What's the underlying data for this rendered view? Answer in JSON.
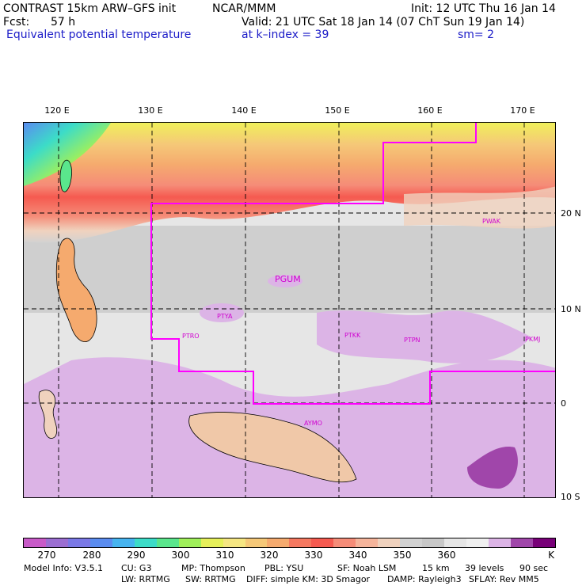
{
  "header": {
    "title": "CONTRAST 15km ARW–GFS init",
    "org": "NCAR/MMM",
    "init": "Init: 12 UTC Thu 16 Jan 14",
    "fcst": "Fcst:",
    "fcst_hours": "57 h",
    "valid": "Valid: 21 UTC Sat 18 Jan 14 (07 ChT Sun 19 Jan 14)",
    "field": "Equivalent potential temperature",
    "level": "at k–index =  39",
    "smooth": "sm= 2"
  },
  "map": {
    "lon_labels": [
      "120 E",
      "130 E",
      "140 E",
      "150 E",
      "160 E",
      "170 E"
    ],
    "lat_labels": [
      "20 N",
      "10 N",
      "0",
      "10 S"
    ],
    "stations": [
      "PWAK",
      "PGUM",
      "PTYA",
      "PTRO",
      "PTKK",
      "PTPN",
      "PKMJ",
      "AYMO"
    ],
    "domain_line_color": "#ff00ff"
  },
  "colorbar": {
    "colors": [
      "#c85ac8",
      "#9b6ed2",
      "#7a78e6",
      "#5a8cf0",
      "#46b4f0",
      "#3cdcc8",
      "#5ae68c",
      "#a0f05a",
      "#e6f05a",
      "#f5e682",
      "#f5c878",
      "#f5aa6e",
      "#f57860",
      "#f55a50",
      "#f58c78",
      "#f5b49b",
      "#f0d2be",
      "#d2d2d2",
      "#c8c8c8",
      "#e6e6e6",
      "#f0f0f0",
      "#dcb4e6",
      "#a046aa",
      "#780078"
    ],
    "labels": [
      "270",
      "280",
      "290",
      "300",
      "310",
      "320",
      "330",
      "340",
      "350",
      "360"
    ],
    "unit": "K"
  },
  "model_info": {
    "line1": [
      "Model Info: V3.5.1",
      "CU: G3",
      "MP: Thompson",
      "PBL: YSU",
      "SF: Noah LSM",
      "15 km",
      "39 levels",
      "90 sec"
    ],
    "line2": [
      "LW: RRTMG",
      "SW: RRTMG",
      "DIFF: simple KM: 3D Smagor",
      "DAMP: Rayleigh3",
      "SFLAY: Rev MM5"
    ]
  }
}
